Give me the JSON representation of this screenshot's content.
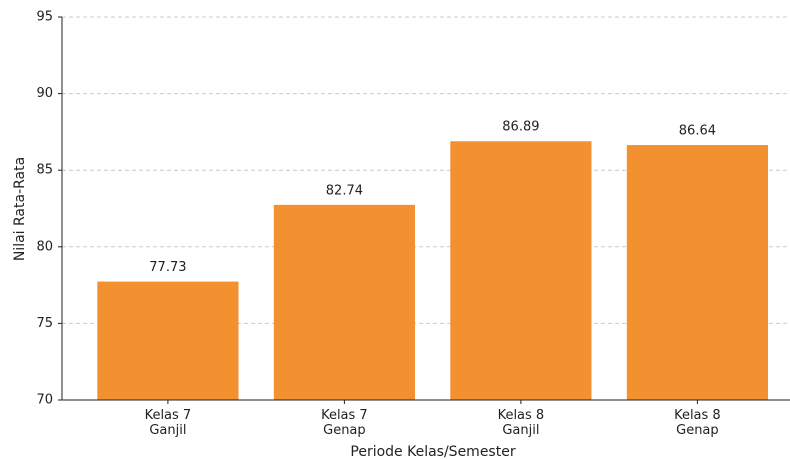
{
  "chart_data": {
    "type": "bar",
    "categories": [
      "Kelas 7\nGanjil",
      "Kelas 7\nGenap",
      "Kelas 8\nGanjil",
      "Kelas 8\nGenap"
    ],
    "values": [
      77.73,
      82.74,
      86.89,
      86.64
    ],
    "color": "#f39130",
    "xlabel": "Periode Kelas/Semester",
    "ylabel": "Nilai Rata-Rata",
    "ylim": [
      70,
      95
    ],
    "yticks": [
      70,
      75,
      80,
      85,
      90,
      95
    ],
    "grid": true
  }
}
